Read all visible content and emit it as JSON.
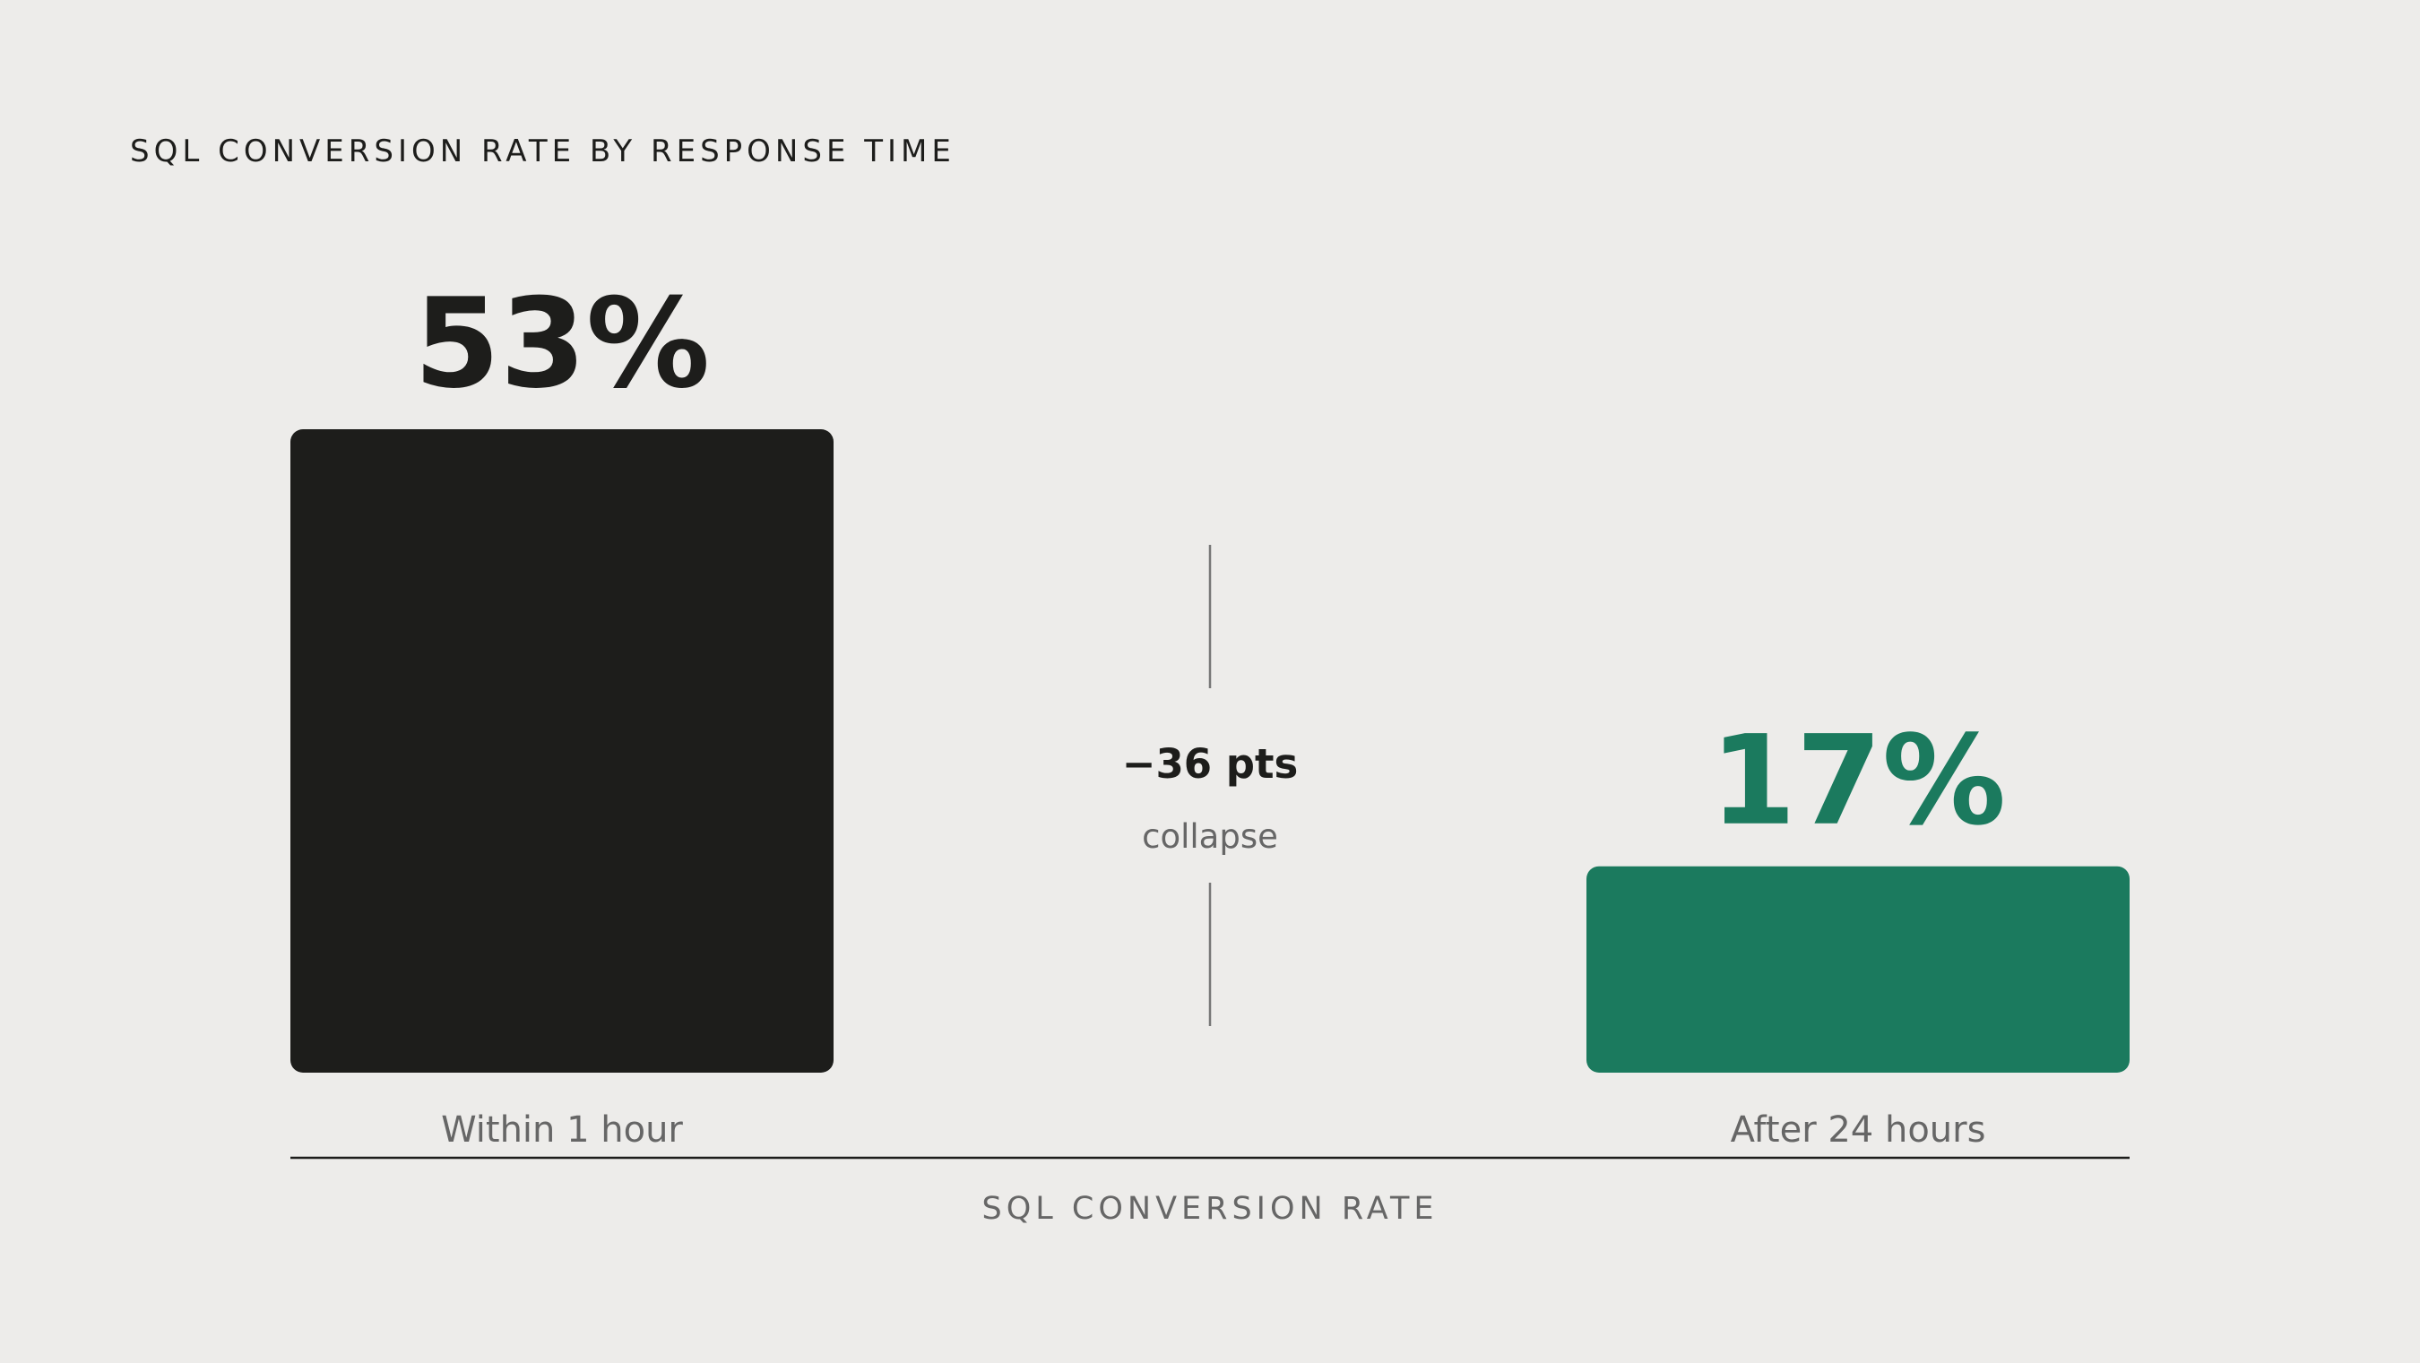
{
  "chart_data": {
    "type": "bar",
    "title": "SQL CONVERSION RATE BY RESPONSE TIME",
    "categories": [
      "Within 1 hour",
      "After 24 hours"
    ],
    "values": [
      53,
      17
    ],
    "value_labels": [
      "53%",
      "17%"
    ],
    "colors": [
      "#1d1d1b",
      "#1b7a5e"
    ],
    "x_label": "SQL CONVERSION RATE",
    "annotation": {
      "text": "−36 pts",
      "subtext": "collapse"
    }
  }
}
